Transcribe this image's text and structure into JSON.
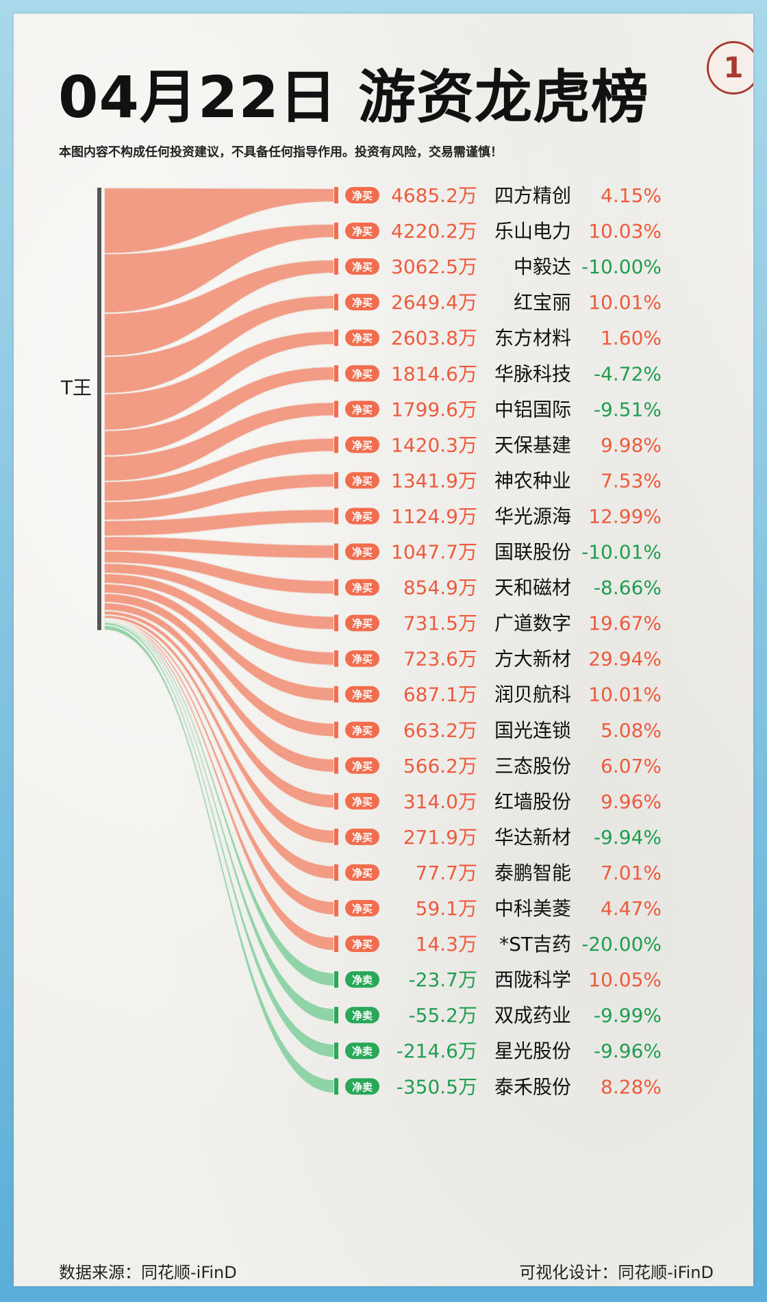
{
  "header": {
    "title": "04月22日 游资龙虎榜",
    "page_number": "1",
    "disclaimer": "本图内容不构成任何投资建议，不具备任何指导作用。投资有风险，交易需谨慎！"
  },
  "footer": {
    "source": "数据来源：同花顺-iFinD",
    "design": "可视化设计：同花顺-iFinD"
  },
  "colors": {
    "buy": "#f26d4e",
    "buy_flow": "#f39c85",
    "sell": "#2aa85a",
    "sell_flow": "#8fd3a7",
    "source_bar": "#555555",
    "up": "#ef5a3c",
    "down": "#1f9e4f"
  },
  "chart_data": {
    "type": "sankey",
    "source": "T王",
    "unit": "万",
    "buy_label": "净买",
    "sell_label": "净卖",
    "rows": [
      {
        "stock": "四方精创",
        "amount": "4685.2万",
        "value": 4685.2,
        "side": "净买",
        "change": "4.15%"
      },
      {
        "stock": "乐山电力",
        "amount": "4220.2万",
        "value": 4220.2,
        "side": "净买",
        "change": "10.03%"
      },
      {
        "stock": "中毅达",
        "amount": "3062.5万",
        "value": 3062.5,
        "side": "净买",
        "change": "-10.00%"
      },
      {
        "stock": "红宝丽",
        "amount": "2649.4万",
        "value": 2649.4,
        "side": "净买",
        "change": "10.01%"
      },
      {
        "stock": "东方材料",
        "amount": "2603.8万",
        "value": 2603.8,
        "side": "净买",
        "change": "1.60%"
      },
      {
        "stock": "华脉科技",
        "amount": "1814.6万",
        "value": 1814.6,
        "side": "净买",
        "change": "-4.72%"
      },
      {
        "stock": "中铝国际",
        "amount": "1799.6万",
        "value": 1799.6,
        "side": "净买",
        "change": "-9.51%"
      },
      {
        "stock": "天保基建",
        "amount": "1420.3万",
        "value": 1420.3,
        "side": "净买",
        "change": "9.98%"
      },
      {
        "stock": "神农种业",
        "amount": "1341.9万",
        "value": 1341.9,
        "side": "净买",
        "change": "7.53%"
      },
      {
        "stock": "华光源海",
        "amount": "1124.9万",
        "value": 1124.9,
        "side": "净买",
        "change": "12.99%"
      },
      {
        "stock": "国联股份",
        "amount": "1047.7万",
        "value": 1047.7,
        "side": "净买",
        "change": "-10.01%"
      },
      {
        "stock": "天和磁材",
        "amount": "854.9万",
        "value": 854.9,
        "side": "净买",
        "change": "-8.66%"
      },
      {
        "stock": "广道数字",
        "amount": "731.5万",
        "value": 731.5,
        "side": "净买",
        "change": "19.67%"
      },
      {
        "stock": "方大新材",
        "amount": "723.6万",
        "value": 723.6,
        "side": "净买",
        "change": "29.94%"
      },
      {
        "stock": "润贝航科",
        "amount": "687.1万",
        "value": 687.1,
        "side": "净买",
        "change": "10.01%"
      },
      {
        "stock": "国光连锁",
        "amount": "663.2万",
        "value": 663.2,
        "side": "净买",
        "change": "5.08%"
      },
      {
        "stock": "三态股份",
        "amount": "566.2万",
        "value": 566.2,
        "side": "净买",
        "change": "6.07%"
      },
      {
        "stock": "红墙股份",
        "amount": "314.0万",
        "value": 314.0,
        "side": "净买",
        "change": "9.96%"
      },
      {
        "stock": "华达新材",
        "amount": "271.9万",
        "value": 271.9,
        "side": "净买",
        "change": "-9.94%"
      },
      {
        "stock": "泰鹏智能",
        "amount": "77.7万",
        "value": 77.7,
        "side": "净买",
        "change": "7.01%"
      },
      {
        "stock": "中科美菱",
        "amount": "59.1万",
        "value": 59.1,
        "side": "净买",
        "change": "4.47%"
      },
      {
        "stock": "*ST吉药",
        "amount": "14.3万",
        "value": 14.3,
        "side": "净买",
        "change": "-20.00%"
      },
      {
        "stock": "西陇科学",
        "amount": "-23.7万",
        "value": -23.7,
        "side": "净卖",
        "change": "10.05%"
      },
      {
        "stock": "双成药业",
        "amount": "-55.2万",
        "value": -55.2,
        "side": "净卖",
        "change": "-9.99%"
      },
      {
        "stock": "星光股份",
        "amount": "-214.6万",
        "value": -214.6,
        "side": "净卖",
        "change": "-9.96%"
      },
      {
        "stock": "泰禾股份",
        "amount": "-350.5万",
        "value": -350.5,
        "side": "净卖",
        "change": "8.28%"
      }
    ]
  }
}
